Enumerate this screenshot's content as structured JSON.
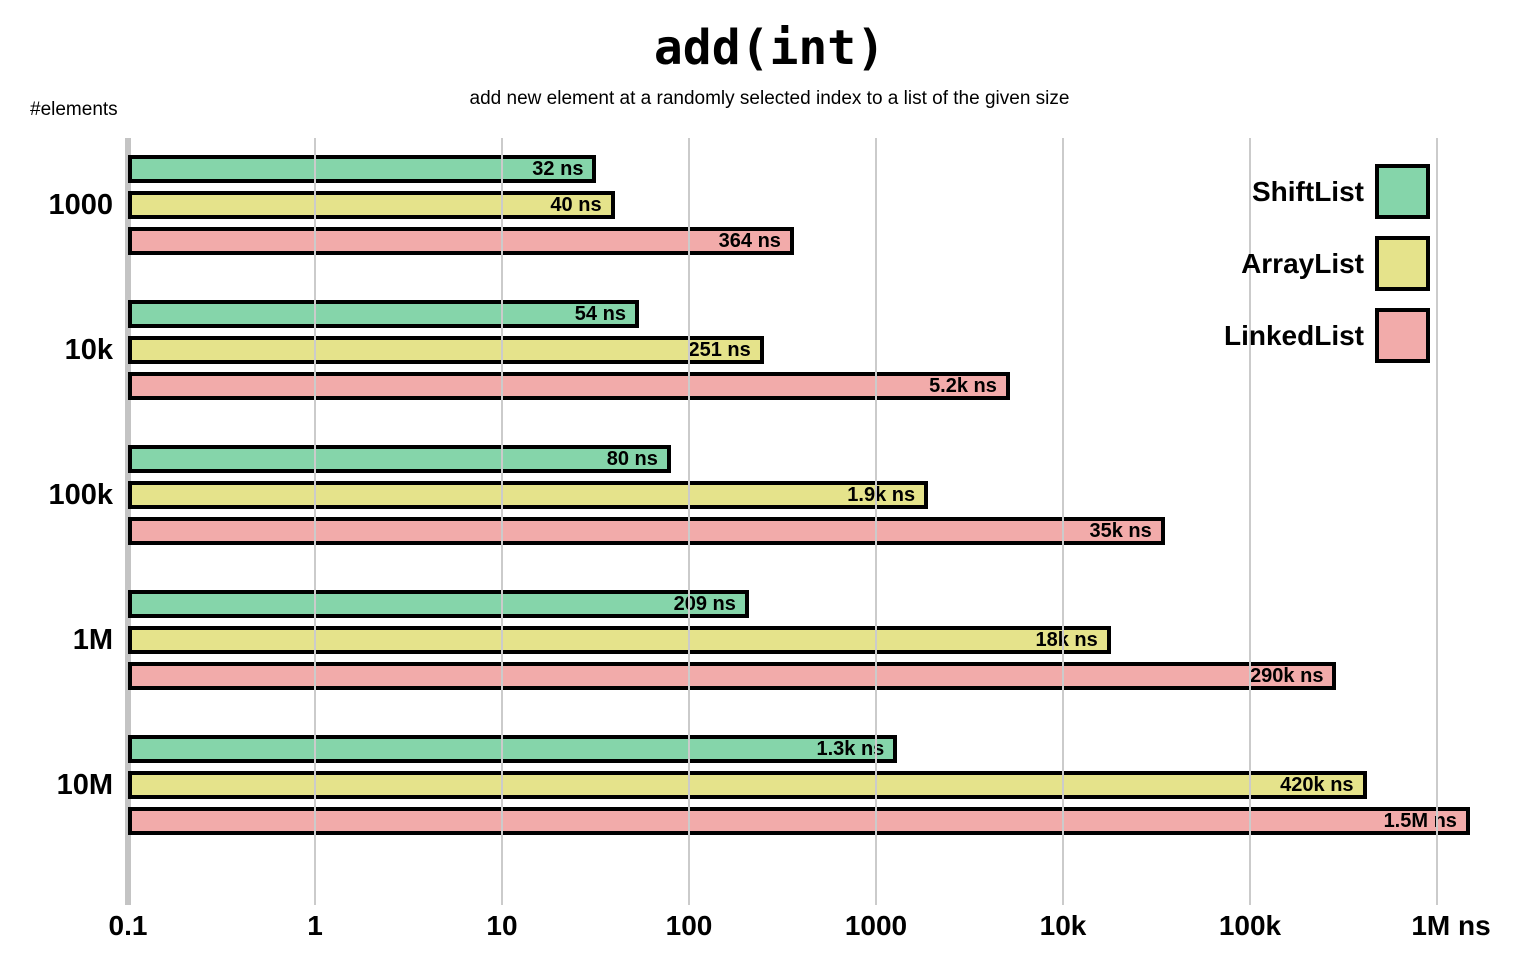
{
  "chart_data": {
    "type": "bar",
    "orientation": "horizontal",
    "title": "add(int)",
    "subtitle": "add new element at a randomly selected index to a list of the given size",
    "ylabel": "#elements",
    "x_scale": "log",
    "x_unit": "ns",
    "x_ticks": [
      "0.1",
      "1",
      "10",
      "100",
      "1000",
      "10k",
      "100k",
      "1M ns"
    ],
    "x_tick_values": [
      0.1,
      1,
      10,
      100,
      1000,
      10000,
      100000,
      1000000
    ],
    "xlim": [
      0.1,
      2300000
    ],
    "grid": true,
    "legend_position": "upper right",
    "categories": [
      "1000",
      "10k",
      "100k",
      "1M",
      "10M"
    ],
    "series": [
      {
        "name": "ShiftList",
        "color": "#85d5aa",
        "values": [
          32,
          54,
          80,
          209,
          1300
        ],
        "labels": [
          "32 ns",
          "54 ns",
          "80 ns",
          "209 ns",
          "1.3k ns"
        ]
      },
      {
        "name": "ArrayList",
        "color": "#e5e38b",
        "values": [
          40,
          251,
          1900,
          18000,
          420000
        ],
        "labels": [
          "40 ns",
          "251 ns",
          "1.9k ns",
          "18k ns",
          "420k ns"
        ]
      },
      {
        "name": "LinkedList",
        "color": "#f2abaa",
        "values": [
          364,
          5200,
          35000,
          290000,
          1500000
        ],
        "labels": [
          "364 ns",
          "5.2k ns",
          "35k ns",
          "290k ns",
          "1.5M ns"
        ]
      }
    ]
  },
  "colors": {
    "grid": "#cbcbcb",
    "axis": "#c4c4c4",
    "bar_border": "#000000",
    "text": "#000000",
    "background": "#ffffff"
  }
}
